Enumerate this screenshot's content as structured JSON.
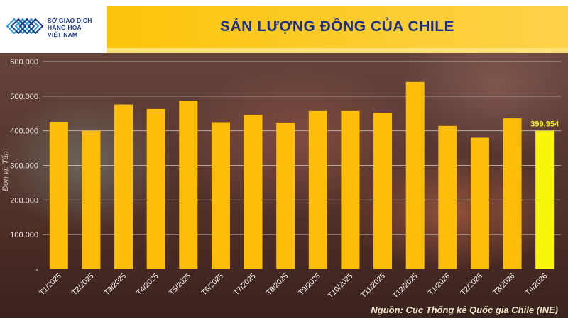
{
  "logo": {
    "line1": "SỞ GIAO DỊCH",
    "line2": "HÀNG HÓA",
    "line3": "VIỆT NAM"
  },
  "source_note": "Nguồn: Cục Thống kê Quốc gia Chile (INE)",
  "colors": {
    "bar": "#fdbd0a",
    "bar_highlight": "#f9f50b",
    "label_highlight": "#f9f50b",
    "title_band": "#fcc409",
    "title_text": "#1e2f8a"
  },
  "chart_data": {
    "type": "bar",
    "title": "SẢN LƯỢNG ĐỒNG CỦA CHILE",
    "ylabel": "Đơn vị: Tấn",
    "xlabel": "",
    "ylim": [
      0,
      600000
    ],
    "yticks": [
      "600.000",
      "500.000",
      "400.000",
      "300.000",
      "200.000",
      "100.000",
      "-"
    ],
    "ytick_values": [
      600000,
      500000,
      400000,
      300000,
      200000,
      100000,
      0
    ],
    "grid": true,
    "categories": [
      "T1/2025",
      "T2/2025",
      "T3/2025",
      "T4/2025",
      "T5/2025",
      "T6/2025",
      "T7/2025",
      "T8/2025",
      "T9/2025",
      "T10/2025",
      "T11/2025",
      "T12/2025",
      "T1/2026",
      "T2/2026",
      "T3/2026",
      "T4/2026"
    ],
    "values": [
      426000,
      400000,
      476000,
      463000,
      487000,
      425000,
      446000,
      424000,
      457000,
      457000,
      452000,
      541000,
      414000,
      380000,
      436000,
      399954
    ],
    "highlight_index": 15,
    "data_labels": [
      {
        "index": 15,
        "text": "399.954"
      }
    ]
  }
}
